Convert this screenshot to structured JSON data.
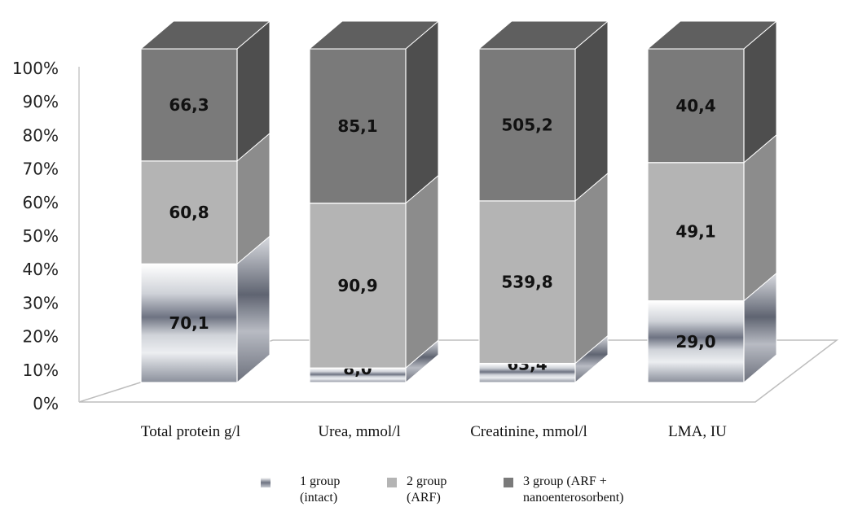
{
  "chart_data": {
    "type": "bar",
    "stacked": true,
    "normalized": true,
    "three_d": true,
    "categories": [
      "Total protein g/l",
      "Urea, mmol/l",
      "Creatinine, mmol/l",
      "LMA, IU"
    ],
    "series": [
      {
        "name_lines": [
          "1 group",
          "(intact)"
        ],
        "values": [
          70.1,
          8.0,
          63.4,
          29.0
        ],
        "labels": [
          "70,1",
          "8,0",
          "63,4",
          "29,0"
        ],
        "color": "#9a9ea8"
      },
      {
        "name_lines": [
          "2 group",
          "(ARF)"
        ],
        "values": [
          60.8,
          90.9,
          539.8,
          49.1
        ],
        "labels": [
          "60,8",
          "90,9",
          "539,8",
          "49,1"
        ],
        "color": "#b4b4b4"
      },
      {
        "name_lines": [
          "3 group (ARF +",
          "nanoenterosorbent)"
        ],
        "values": [
          66.3,
          85.1,
          505.2,
          40.4
        ],
        "labels": [
          "66,3",
          "85,1",
          "505,2",
          "40,4"
        ],
        "color": "#7a7a7a"
      }
    ],
    "yticks": [
      "0%",
      "10%",
      "20%",
      "30%",
      "40%",
      "50%",
      "60%",
      "70%",
      "80%",
      "90%",
      "100%"
    ],
    "ylim": [
      0,
      100
    ],
    "grid": false,
    "legend_position": "bottom"
  }
}
